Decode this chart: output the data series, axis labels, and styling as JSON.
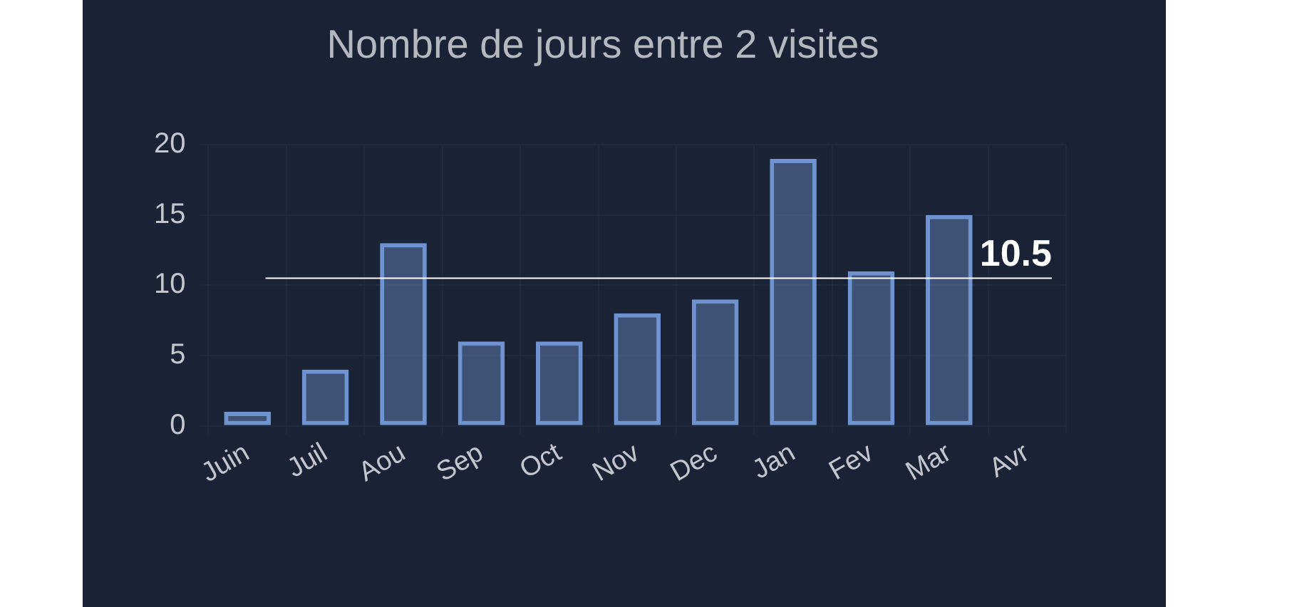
{
  "chart_data": {
    "type": "bar",
    "title": "Nombre de jours entre 2 visites",
    "categories": [
      "Juin",
      "Juil",
      "Aou",
      "Sep",
      "Oct",
      "Nov",
      "Dec",
      "Jan",
      "Fev",
      "Mar",
      "Avr"
    ],
    "series": [
      {
        "color": "#6f93d0",
        "values": [
          1,
          4,
          13,
          6,
          6,
          8,
          9,
          19,
          11,
          15,
          0
        ]
      }
    ],
    "ylim": [
      0,
      20
    ],
    "yticks": [
      0,
      5,
      10,
      15,
      20
    ],
    "grid": true,
    "ref_lines": [
      {
        "axis": "y",
        "value": 10.5,
        "label": "10.5",
        "color": "#ffffff"
      }
    ]
  }
}
